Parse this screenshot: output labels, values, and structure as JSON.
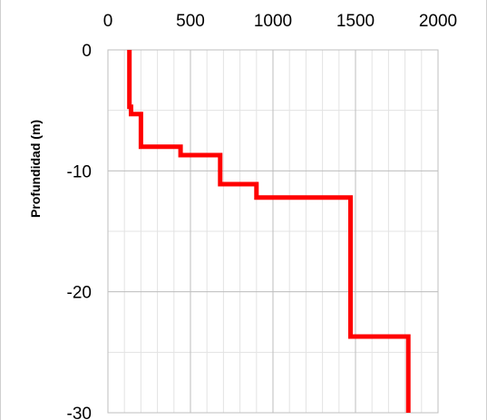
{
  "chart_data": {
    "type": "line",
    "title": "",
    "xlabel": "",
    "ylabel": "Profundidad (m)",
    "x_axis_position": "top",
    "xlim": [
      0,
      2000
    ],
    "ylim": [
      -30,
      0
    ],
    "x_ticks": [
      0,
      500,
      1000,
      1500,
      2000
    ],
    "x_tick_labels": [
      "0",
      "500",
      "1000",
      "1500",
      "2000"
    ],
    "x_minor_step": 100,
    "y_ticks": [
      0,
      -10,
      -20,
      -30
    ],
    "y_tick_labels": [
      "0",
      "-10",
      "-20",
      "-30"
    ],
    "y_minor_step": 5,
    "grid": true,
    "legend": "none",
    "series": [
      {
        "color": "#ff0000",
        "x": [
          130,
          130,
          140,
          140,
          200,
          200,
          440,
          440,
          680,
          680,
          900,
          900,
          1470,
          1470,
          1820,
          1820
        ],
        "y": [
          0,
          -4.7,
          -4.7,
          -5.3,
          -5.3,
          -8.0,
          -8.0,
          -8.7,
          -8.7,
          -11.1,
          -11.1,
          -12.2,
          -12.2,
          -23.7,
          -23.7,
          -30
        ]
      }
    ]
  }
}
